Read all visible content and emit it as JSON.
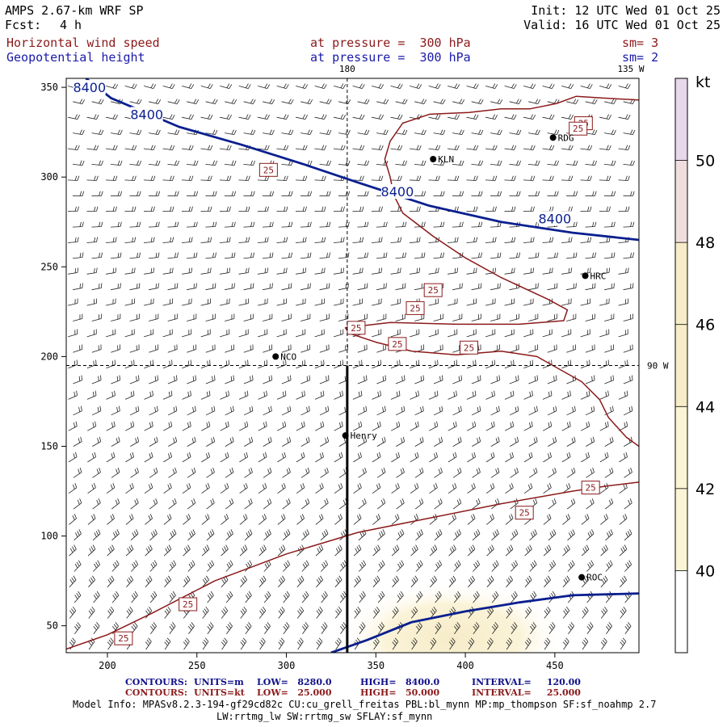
{
  "header": {
    "model": "AMPS 2.67-km WRF SP",
    "fcst_label": "Fcst:",
    "fcst_value": "4 h",
    "init": "Init: 12 UTC Wed 01 Oct 25",
    "valid": "Valid: 16 UTC Wed 01 Oct 25",
    "field1": "Horizontal wind speed",
    "field1_level": "at pressure =  300 hPa",
    "field1_sm": "sm= 3",
    "field2": "Geopotential height",
    "field2_level": "at pressure =  300 hPa",
    "field2_sm": "sm= 2"
  },
  "colors": {
    "wind_contour": "#8b1a1a",
    "height_contour": "#0a1f8f",
    "barb": "#222222",
    "shade_40": "#fbf5d6",
    "shade_44": "#f6ecc9",
    "shade_48": "#f0dede",
    "shade_50": "#e8d8ec"
  },
  "chart_data": {
    "type": "contour",
    "title": "Horizontal wind speed and Geopotential height at 300 hPa",
    "x_ticks": [
      200,
      250,
      300,
      350,
      400,
      450
    ],
    "y_ticks": [
      50,
      100,
      150,
      200,
      250,
      300,
      350
    ],
    "xlim": [
      177,
      497
    ],
    "ylim": [
      35,
      355
    ],
    "top_labels": [
      "180",
      "135 W"
    ],
    "right_label": "90 W",
    "colorbar": {
      "unit": "kt",
      "ticks": [
        40,
        42,
        44,
        46,
        48,
        50
      ],
      "range": [
        38,
        52
      ]
    },
    "height_contours": [
      {
        "value": 8400,
        "label": "8400",
        "points": [
          [
            188,
            355
          ],
          [
            202,
            344
          ],
          [
            240,
            328
          ],
          [
            275,
            318
          ],
          [
            310,
            307
          ],
          [
            340,
            297
          ],
          [
            380,
            284
          ],
          [
            420,
            275
          ],
          [
            460,
            269
          ],
          [
            497,
            265
          ]
        ],
        "labels_at": [
          [
            190,
            350
          ],
          [
            222,
            335
          ],
          [
            362,
            292
          ],
          [
            450,
            277
          ]
        ]
      },
      {
        "value": 8400,
        "label": "",
        "points": [
          [
            325,
            35
          ],
          [
            345,
            42
          ],
          [
            370,
            52
          ],
          [
            400,
            58
          ],
          [
            430,
            63
          ],
          [
            460,
            67
          ],
          [
            497,
            68
          ]
        ],
        "labels_at": []
      }
    ],
    "wind_contours": [
      {
        "value": 25,
        "label": "25",
        "points": [
          [
            177,
            37
          ],
          [
            200,
            45
          ],
          [
            225,
            57
          ],
          [
            260,
            75
          ],
          [
            300,
            90
          ],
          [
            340,
            102
          ],
          [
            380,
            110
          ],
          [
            420,
            118
          ],
          [
            460,
            125
          ],
          [
            480,
            128
          ],
          [
            497,
            130
          ]
        ],
        "labels_at": [
          [
            209,
            43
          ],
          [
            245,
            62
          ],
          [
            433,
            113
          ],
          [
            470,
            127
          ]
        ]
      },
      {
        "value": 25,
        "label": "25",
        "points": [
          [
            497,
            150
          ],
          [
            490,
            155
          ],
          [
            480,
            166
          ],
          [
            475,
            176
          ],
          [
            465,
            186
          ],
          [
            440,
            200
          ],
          [
            420,
            203
          ],
          [
            395,
            201
          ],
          [
            370,
            203
          ],
          [
            350,
            208
          ],
          [
            335,
            213
          ],
          [
            333,
            216
          ],
          [
            358,
            219
          ],
          [
            395,
            218
          ],
          [
            430,
            218
          ],
          [
            455,
            220
          ],
          [
            457,
            226
          ],
          [
            446,
            232
          ],
          [
            420,
            244
          ],
          [
            400,
            255
          ],
          [
            382,
            267
          ],
          [
            365,
            280
          ],
          [
            360,
            290
          ],
          [
            358,
            300
          ],
          [
            355,
            310
          ],
          [
            358,
            320
          ],
          [
            365,
            330
          ],
          [
            380,
            335
          ],
          [
            402,
            336
          ],
          [
            420,
            338
          ],
          [
            436,
            338
          ],
          [
            451,
            341
          ],
          [
            462,
            345
          ],
          [
            477,
            344
          ],
          [
            497,
            343
          ]
        ],
        "labels_at": [
          [
            339,
            216
          ],
          [
            290,
            304
          ],
          [
            466,
            330
          ],
          [
            463,
            327
          ],
          [
            372,
            227
          ],
          [
            402,
            205
          ],
          [
            362,
            207
          ],
          [
            382,
            237
          ]
        ]
      }
    ],
    "stations": [
      {
        "name": "RDG",
        "x": 449,
        "y": 322
      },
      {
        "name": "KLN",
        "x": 382,
        "y": 310
      },
      {
        "name": "HRC",
        "x": 467,
        "y": 245
      },
      {
        "name": "NCO",
        "x": 294,
        "y": 200
      },
      {
        "name": "Henry",
        "x": 333,
        "y": 156
      },
      {
        "name": "ROC",
        "x": 465,
        "y": 77
      }
    ],
    "reference_lines": {
      "x_dashed": 334,
      "y_dashed": 195,
      "solid_from": [
        334,
        195
      ],
      "solid_to": [
        334,
        35
      ]
    }
  },
  "footer": {
    "line1_label": "CONTOURS:",
    "line1_units": "UNITS=m",
    "line1_low": "LOW=   8280.0",
    "line1_high": "HIGH=   8400.0",
    "line1_interval": "INTERVAL=     120.00",
    "line2_label": "CONTOURS:",
    "line2_units": "UNITS=kt",
    "line2_low": "LOW=   25.000",
    "line2_high": "HIGH=   50.000",
    "line2_interval": "INTERVAL=     25.000",
    "model_info": "Model Info: MPASv8.2.3-194-gf29cd82c CU:cu_grell_freitas PBL:bl_mynn MP:mp_thompson SF:sf_noahmp 2.7",
    "model_info2": "LW:rrtmg_lw SW:rrtmg_sw SFLAY:sf_mynn"
  }
}
